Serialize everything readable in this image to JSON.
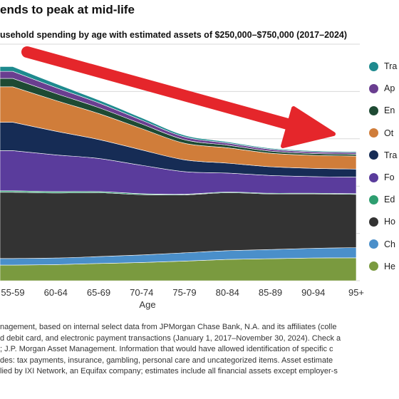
{
  "title": "ends to peak at mid-life",
  "subtitle": "usehold spending by age with estimated assets of $250,000–$750,000 (2017–2024)",
  "chart_data": {
    "type": "area",
    "stacked": true,
    "title": "ends to peak at mid-life",
    "xlabel": "Age",
    "ylabel": "",
    "categories": [
      "55-59",
      "60-64",
      "65-69",
      "70-74",
      "75-79",
      "80-84",
      "85-89",
      "90-94",
      "95+"
    ],
    "ylim": [
      0,
      100
    ],
    "grid": true,
    "legend_position": "right",
    "annotation": "red arrow pointing down-right",
    "series": [
      {
        "name": "He",
        "color": "#7a9a3f",
        "values": [
          6.6,
          6.8,
          7.3,
          7.7,
          8.3,
          9.0,
          9.3,
          9.6,
          9.7
        ]
      },
      {
        "name": "Ch",
        "color": "#4a8fca",
        "values": [
          2.8,
          2.8,
          2.9,
          3.2,
          3.5,
          3.7,
          3.9,
          4.1,
          4.3
        ]
      },
      {
        "name": "Ho",
        "color": "#333333",
        "values": [
          28,
          27.5,
          27,
          25.5,
          24.5,
          24.5,
          23.5,
          23,
          22.5
        ]
      },
      {
        "name": "Ed",
        "color": "#2e9e70",
        "values": [
          0.6,
          0.6,
          0.5,
          0.4,
          0.3,
          0.3,
          0.3,
          0.3,
          0.3
        ]
      },
      {
        "name": "Fo",
        "color": "#5a3c9c",
        "values": [
          17,
          15.5,
          14,
          12,
          9.5,
          8,
          7.5,
          7,
          7
        ]
      },
      {
        "name": "Tra",
        "color": "#162c55",
        "values": [
          12,
          10,
          8,
          6.5,
          5,
          4.2,
          3.7,
          3.5,
          3.4
        ]
      },
      {
        "name": "Ot",
        "color": "#d07d3a",
        "values": [
          15,
          13,
          11,
          9,
          7,
          6.5,
          5.7,
          5.5,
          5.5
        ]
      },
      {
        "name": "En",
        "color": "#1e4a33",
        "values": [
          3.5,
          3,
          2.5,
          2,
          1.5,
          1.1,
          0.9,
          0.8,
          0.8
        ]
      },
      {
        "name": "Ap",
        "color": "#6a3e90",
        "values": [
          3,
          2.5,
          2,
          1.6,
          1.2,
          0.9,
          0.8,
          0.7,
          0.7
        ]
      },
      {
        "name": "Tra",
        "color": "#1e8a8e",
        "values": [
          2,
          1.6,
          1.2,
          1,
          0.7,
          0.5,
          0.4,
          0.4,
          0.4
        ]
      }
    ]
  },
  "legend": [
    {
      "label": "Tra",
      "color": "#1e8a8e"
    },
    {
      "label": "Ap",
      "color": "#6a3e90"
    },
    {
      "label": "En",
      "color": "#1e4a33"
    },
    {
      "label": "Ot",
      "color": "#d07d3a"
    },
    {
      "label": "Tra",
      "color": "#162c55"
    },
    {
      "label": "Fo",
      "color": "#5a3c9c"
    },
    {
      "label": "Ed",
      "color": "#2e9e70"
    },
    {
      "label": "Ho",
      "color": "#333333"
    },
    {
      "label": "Ch",
      "color": "#4a8fca"
    },
    {
      "label": "He",
      "color": "#7a9a3f"
    }
  ],
  "footnote": [
    "nagement, based on internal select data from JPMorgan Chase Bank, N.A. and its affiliates (colle",
    "d debit card, and electronic payment transactions (January 1, 2017–November 30, 2024). Check a",
    "; J.P. Morgan Asset Management. Information that would have allowed identification of specific c",
    "des: tax payments, insurance, gambling, personal care and uncategorized items. Asset estimate",
    "lied by IXI Network, an Equifax company; estimates include all financial assets except employer-s"
  ]
}
